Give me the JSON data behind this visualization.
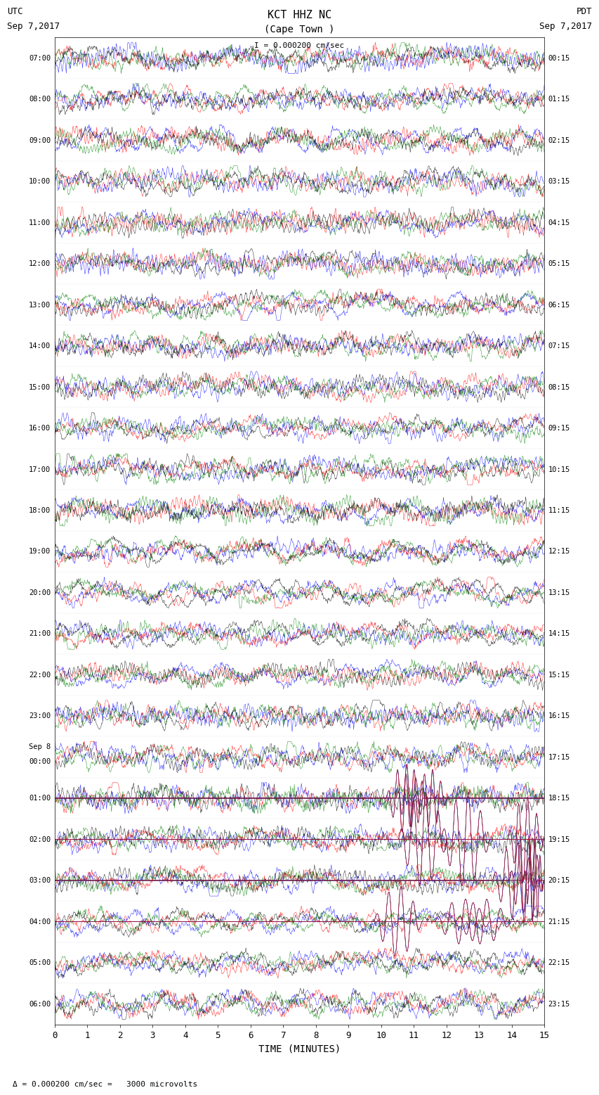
{
  "title_line1": "KCT HHZ NC",
  "title_line2": "(Cape Town )",
  "scale_label": "= 0.000200 cm/sec",
  "scale_label2": "= 0.000200 cm/sec =   3000 microvolts",
  "utc_label": "UTC",
  "utc_date": "Sep 7,2017",
  "pdt_label": "PDT",
  "pdt_date": "Sep 7,2017",
  "xlabel": "TIME (MINUTES)",
  "left_times": [
    "07:00",
    "08:00",
    "09:00",
    "10:00",
    "11:00",
    "12:00",
    "13:00",
    "14:00",
    "15:00",
    "16:00",
    "17:00",
    "18:00",
    "19:00",
    "20:00",
    "21:00",
    "22:00",
    "23:00",
    "Sep 8",
    "00:00",
    "01:00",
    "02:00",
    "03:00",
    "04:00",
    "05:00",
    "06:00"
  ],
  "left_times_special": [
    17
  ],
  "right_times": [
    "00:15",
    "01:15",
    "02:15",
    "03:15",
    "04:15",
    "05:15",
    "06:15",
    "07:15",
    "08:15",
    "09:15",
    "10:15",
    "11:15",
    "12:15",
    "13:15",
    "14:15",
    "15:15",
    "16:15",
    "17:15",
    "18:15",
    "19:15",
    "20:15",
    "21:15",
    "22:15",
    "23:15"
  ],
  "n_rows": 24,
  "n_cols": 900,
  "colors": [
    "red",
    "blue",
    "green",
    "black"
  ],
  "bg_color": "white",
  "trace_amplitude": 0.38,
  "fig_width": 8.5,
  "fig_height": 16.13,
  "x_ticks": [
    0,
    1,
    2,
    3,
    4,
    5,
    6,
    7,
    8,
    9,
    10,
    11,
    12,
    13,
    14,
    15
  ],
  "x_min": 0,
  "x_max": 15
}
